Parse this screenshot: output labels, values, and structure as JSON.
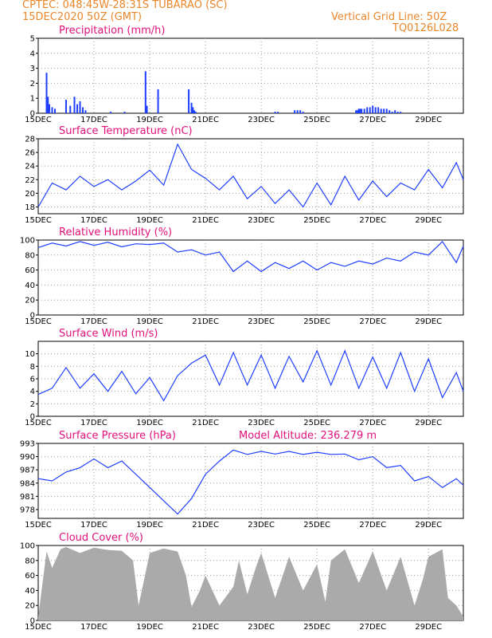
{
  "header": {
    "line1": "CPTEC:   048:45W-28:31S   TUBARAO (SC)",
    "line2": "15DEC2020 50Z (GMT)",
    "grid_note": "Vertical Grid Line: 50Z",
    "code": "TQ0126L028",
    "model_altitude": "Model Altitude: 236.279  m"
  },
  "colors": {
    "header": "#e8862a",
    "title": "#e0107a",
    "line": "#1f3fff",
    "cloud": "#aaaaaa"
  },
  "x_tick_labels": [
    "15DEC",
    "17DEC",
    "19DEC",
    "21DEC",
    "23DEC",
    "25DEC",
    "27DEC",
    "29DEC"
  ],
  "chart_data": [
    {
      "type": "bar",
      "title": "Precipitation (mm/h)",
      "ylim": [
        0,
        5
      ],
      "yticks": [
        "0",
        "1",
        "2",
        "3",
        "4",
        "5"
      ],
      "x_days": [
        0.3,
        0.35,
        0.4,
        0.5,
        0.6,
        1.0,
        1.15,
        1.3,
        1.4,
        1.5,
        1.6,
        1.7,
        2.6,
        3.1,
        3.85,
        3.9,
        4.3,
        5.4,
        5.5,
        5.55,
        5.6,
        5.65,
        8.5,
        8.6,
        9.2,
        9.3,
        9.4,
        9.5,
        11.4,
        11.45,
        11.5,
        11.55,
        11.6,
        11.7,
        11.8,
        11.9,
        12.0,
        12.1,
        12.2,
        12.3,
        12.4,
        12.5,
        12.6,
        12.7,
        12.8,
        12.9,
        13.0
      ],
      "values": [
        2.7,
        1.1,
        0.6,
        0.4,
        0.3,
        0.9,
        0.5,
        1.1,
        0.6,
        0.8,
        0.4,
        0.2,
        0.1,
        0.1,
        2.8,
        0.5,
        1.6,
        1.6,
        0.7,
        0.4,
        0.2,
        0.1,
        0.1,
        0.1,
        0.2,
        0.2,
        0.2,
        0.1,
        0.2,
        0.2,
        0.3,
        0.3,
        0.3,
        0.3,
        0.4,
        0.4,
        0.5,
        0.4,
        0.4,
        0.3,
        0.3,
        0.3,
        0.2,
        0.1,
        0.2,
        0.1,
        0.1
      ]
    },
    {
      "type": "line",
      "title": "Surface Temperature (nC)",
      "ylim": [
        17,
        28
      ],
      "yticks": [
        "18",
        "20",
        "22",
        "24",
        "26",
        "28"
      ],
      "x_days": [
        0,
        0.5,
        1,
        1.5,
        2,
        2.5,
        3,
        3.5,
        4,
        4.5,
        5,
        5.5,
        6,
        6.5,
        7,
        7.5,
        8,
        8.5,
        9,
        9.5,
        10,
        10.5,
        11,
        11.5,
        12,
        12.5,
        13,
        13.5,
        14,
        14.5,
        15,
        15.25
      ],
      "values": [
        18,
        21.5,
        20.5,
        22.5,
        21,
        22,
        20.5,
        21.8,
        23.4,
        21.2,
        27.2,
        23.5,
        22.2,
        20.5,
        22.5,
        19.2,
        21,
        18.5,
        20.5,
        18,
        21.5,
        18.3,
        22.5,
        19,
        21.8,
        19.5,
        21.5,
        20.5,
        23.5,
        20.8,
        24.5,
        22
      ]
    },
    {
      "type": "line",
      "title": "Relative Humidity (%)",
      "ylim": [
        0,
        100
      ],
      "yticks": [
        "0",
        "20",
        "40",
        "60",
        "80",
        "100"
      ],
      "x_days": [
        0,
        0.5,
        1,
        1.5,
        2,
        2.5,
        3,
        3.5,
        4,
        4.5,
        5,
        5.5,
        6,
        6.5,
        7,
        7.5,
        8,
        8.5,
        9,
        9.5,
        10,
        10.5,
        11,
        11.5,
        12,
        12.5,
        13,
        13.5,
        14,
        14.5,
        15,
        15.25
      ],
      "values": [
        90,
        96,
        92,
        98,
        93,
        97,
        91,
        95,
        94,
        96,
        84,
        87,
        80,
        84,
        58,
        72,
        58,
        70,
        62,
        72,
        60,
        70,
        65,
        72,
        68,
        76,
        72,
        84,
        80,
        98,
        70,
        92
      ]
    },
    {
      "type": "line",
      "title": "Surface Wind (m/s)",
      "ylim": [
        0,
        12
      ],
      "yticks": [
        "0",
        "2",
        "4",
        "6",
        "8",
        "10"
      ],
      "x_days": [
        0,
        0.5,
        1,
        1.5,
        2,
        2.5,
        3,
        3.5,
        4,
        4.5,
        5,
        5.5,
        6,
        6.5,
        7,
        7.5,
        8,
        8.5,
        9,
        9.5,
        10,
        10.5,
        11,
        11.5,
        12,
        12.5,
        13,
        13.5,
        14,
        14.5,
        15,
        15.25
      ],
      "values": [
        3.5,
        4.5,
        7.8,
        4.5,
        6.8,
        4.0,
        7.2,
        3.6,
        6.2,
        2.5,
        6.5,
        8.5,
        9.8,
        5,
        10.2,
        5,
        9.8,
        4.5,
        9.6,
        5.5,
        10.5,
        5,
        10.5,
        4.5,
        9.5,
        4.5,
        10.2,
        4,
        9.2,
        3,
        7,
        4
      ]
    },
    {
      "type": "line",
      "title": "Surface Pressure (hPa)",
      "ylim": [
        976,
        993
      ],
      "yticks": [
        "978",
        "981",
        "984",
        "987",
        "990",
        "993"
      ],
      "x_days": [
        0,
        0.5,
        1,
        1.5,
        2,
        2.5,
        3,
        3.5,
        4,
        4.5,
        5,
        5.5,
        6,
        6.5,
        7,
        7.5,
        8,
        8.5,
        9,
        9.5,
        10,
        10.5,
        11,
        11.5,
        12,
        12.5,
        13,
        13.5,
        14,
        14.5,
        15,
        15.25
      ],
      "values": [
        985,
        984.5,
        986.5,
        987.5,
        989.5,
        987.5,
        989,
        986,
        983,
        980,
        977,
        980.5,
        986,
        989,
        991.5,
        990.5,
        991.2,
        990.6,
        991.2,
        990.5,
        991,
        990.5,
        990.6,
        989.3,
        990,
        987.5,
        988,
        984.5,
        985.5,
        983,
        985,
        983.5
      ]
    },
    {
      "type": "area",
      "title": "Cloud Cover (%)",
      "ylim": [
        0,
        100
      ],
      "yticks": [
        "0",
        "20",
        "40",
        "60",
        "80",
        "100"
      ],
      "x_days": [
        0,
        0.3,
        0.5,
        0.8,
        1,
        1.5,
        2,
        2.5,
        3,
        3.4,
        3.6,
        3.8,
        4,
        4.5,
        5,
        5.3,
        5.5,
        5.8,
        6,
        6.5,
        7,
        7.2,
        7.5,
        7.8,
        8,
        8.5,
        9,
        9.5,
        10,
        10.3,
        10.5,
        11,
        11.5,
        12,
        12.5,
        13,
        13.5,
        13.8,
        14,
        14.5,
        14.7,
        15,
        15.25
      ],
      "values": [
        5,
        92,
        70,
        95,
        98,
        90,
        97,
        94,
        93,
        80,
        20,
        55,
        90,
        96,
        92,
        60,
        18,
        40,
        60,
        20,
        45,
        80,
        35,
        70,
        90,
        30,
        85,
        40,
        75,
        25,
        80,
        95,
        50,
        92,
        40,
        85,
        20,
        55,
        85,
        95,
        30,
        20,
        5
      ]
    }
  ]
}
